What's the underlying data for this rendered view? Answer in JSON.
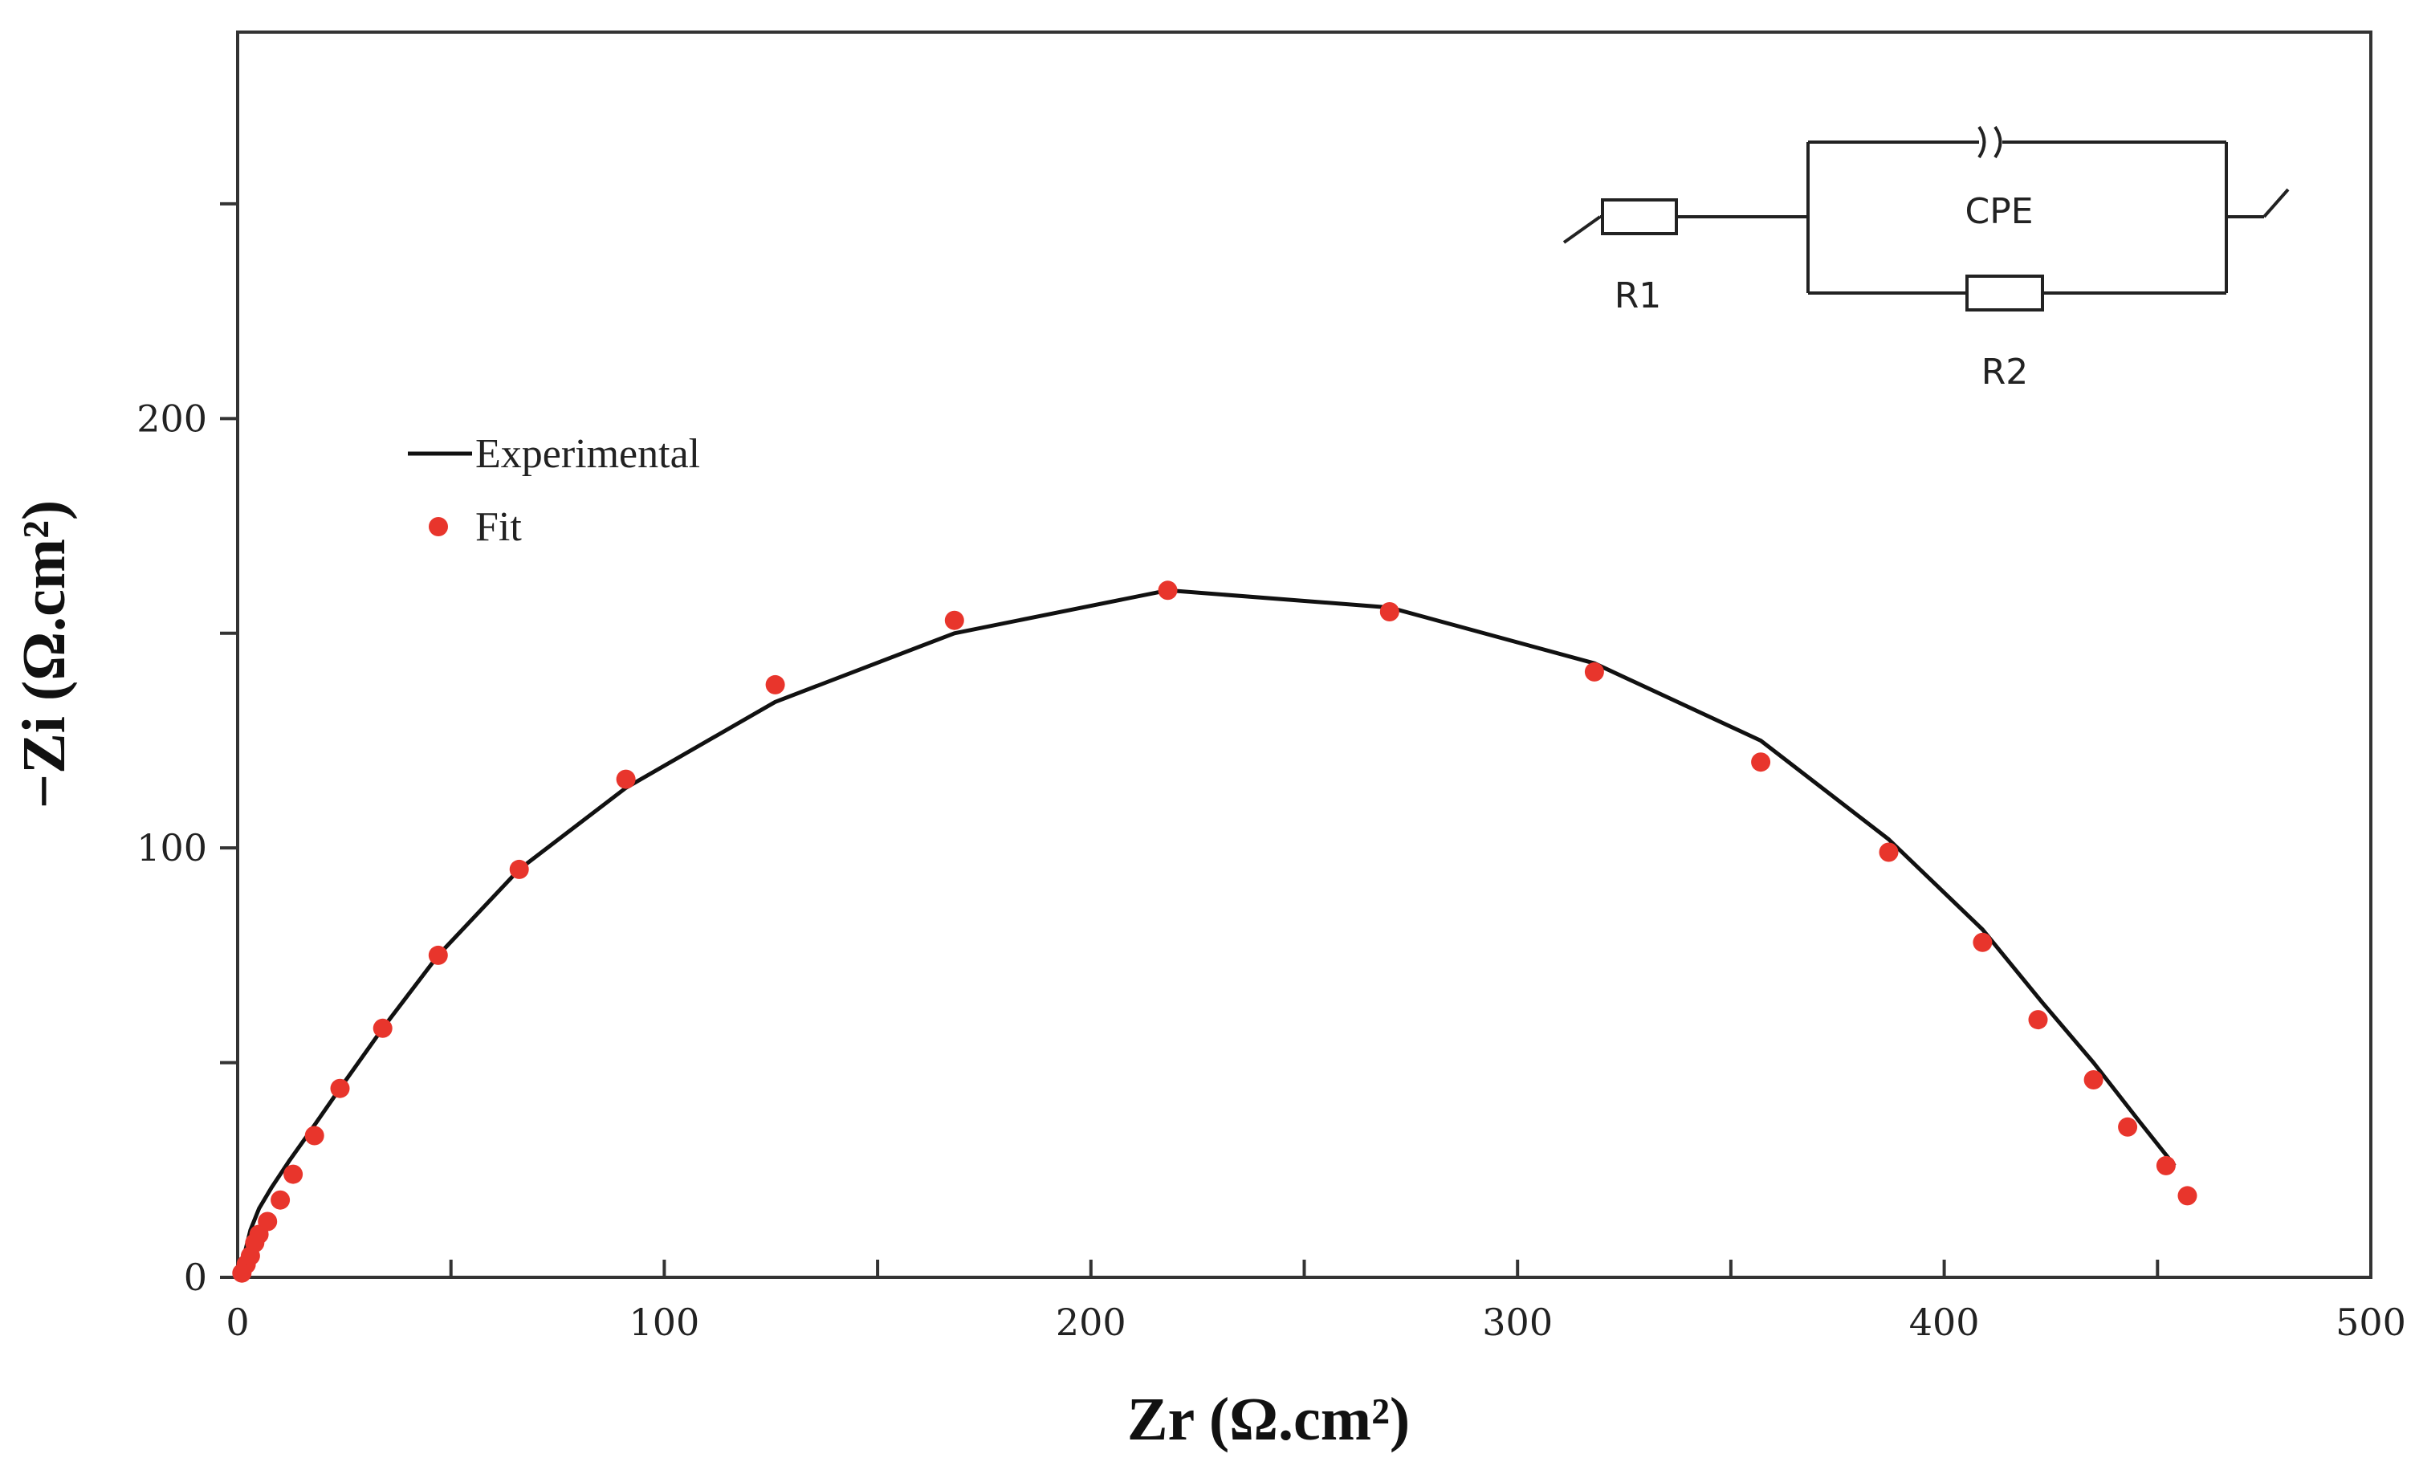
{
  "chart_data": {
    "type": "scatter",
    "title": "",
    "xlabel": "Zr (Ω.cm²)",
    "ylabel": "−Zi (Ω.cm²)",
    "xlim": [
      0,
      500
    ],
    "ylim": [
      0,
      290
    ],
    "x_ticks": [
      0,
      100,
      200,
      300,
      400,
      500
    ],
    "x_tick_labels": [
      "0",
      "100",
      "200",
      "300",
      "400",
      "500"
    ],
    "x_minor_ticks": [
      50,
      150,
      250,
      350,
      450
    ],
    "y_ticks": [
      0,
      100,
      200
    ],
    "y_tick_labels": [
      "0",
      "100",
      "200"
    ],
    "y_minor_ticks": [
      50,
      150,
      250
    ],
    "grid": false,
    "legend": {
      "position": "upper-left",
      "entries": [
        {
          "label": "Experimental",
          "style": "line",
          "color": "#111111"
        },
        {
          "label": "Fit",
          "style": "marker",
          "color": "#e8352c"
        }
      ]
    },
    "series": [
      {
        "name": "Experimental",
        "kind": "line",
        "color": "#111111",
        "x": [
          0,
          1,
          2,
          3,
          5,
          8,
          12,
          17,
          24,
          34,
          47,
          66,
          91,
          126,
          168,
          218,
          270,
          318,
          357,
          387,
          409,
          423,
          435,
          446,
          454
        ],
        "y": [
          0,
          3,
          7,
          11,
          16,
          21,
          27,
          34,
          44,
          58,
          75,
          95,
          114,
          134,
          150,
          160,
          156,
          143,
          125,
          102,
          81,
          64,
          50,
          36,
          26
        ]
      },
      {
        "name": "Fit",
        "kind": "scatter",
        "color": "#e8352c",
        "x": [
          1,
          2,
          3,
          4,
          5,
          7,
          10,
          13,
          18,
          24,
          34,
          47,
          66,
          91,
          126,
          168,
          218,
          270,
          318,
          357,
          387,
          409,
          422,
          435,
          443,
          452,
          457
        ],
        "y": [
          1,
          3,
          5,
          8,
          10,
          13,
          18,
          24,
          33,
          44,
          58,
          75,
          95,
          116,
          138,
          153,
          160,
          155,
          141,
          120,
          99,
          78,
          60,
          46,
          35,
          26,
          19
        ]
      }
    ],
    "annotation": {
      "type": "equivalent-circuit",
      "labels": {
        "r1": "R1",
        "cpe": "CPE",
        "r2": "R2"
      }
    }
  }
}
